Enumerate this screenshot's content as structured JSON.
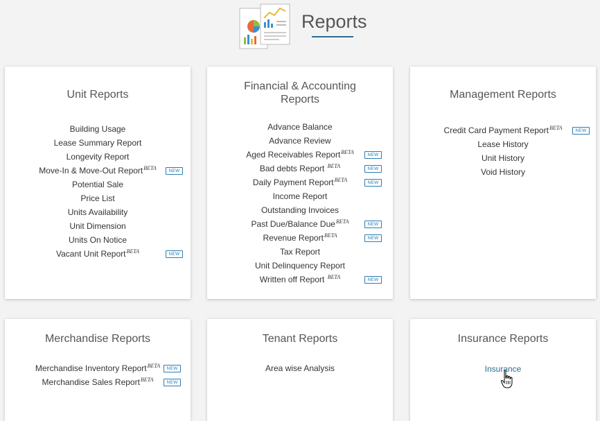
{
  "page": {
    "title": "Reports"
  },
  "badge_new": "NEW",
  "beta": "BETA",
  "cards": {
    "unit": {
      "title": "Unit Reports",
      "items": [
        {
          "label": "Building Usage"
        },
        {
          "label": "Lease Summary Report"
        },
        {
          "label": "Longevity Report"
        },
        {
          "label": "Move-In & Move-Out Report"
        },
        {
          "label": "Potential Sale"
        },
        {
          "label": "Price List"
        },
        {
          "label": "Units Availability"
        },
        {
          "label": "Unit Dimension"
        },
        {
          "label": "Units On Notice"
        },
        {
          "label": "Vacant Unit Report"
        }
      ]
    },
    "financial": {
      "title_line1": "Financial & Accounting",
      "title_line2": "Reports",
      "items": [
        {
          "label": "Advance Balance"
        },
        {
          "label": "Advance Review"
        },
        {
          "label": "Aged Receivables Report"
        },
        {
          "label": "Bad debts Report"
        },
        {
          "label": "Daily Payment Report"
        },
        {
          "label": "Income Report"
        },
        {
          "label": "Outstanding Invoices"
        },
        {
          "label": "Past Due/Balance Due"
        },
        {
          "label": "Revenue Report"
        },
        {
          "label": "Tax Report"
        },
        {
          "label": "Unit Delinquency Report"
        },
        {
          "label": "Written off Report"
        }
      ]
    },
    "management": {
      "title": "Management Reports",
      "items": [
        {
          "label": "Credit Card Payment Report"
        },
        {
          "label": "Lease History"
        },
        {
          "label": "Unit History"
        },
        {
          "label": "Void History"
        }
      ]
    },
    "merchandise": {
      "title": "Merchandise Reports",
      "items": [
        {
          "label": "Merchandise Inventory Report"
        },
        {
          "label": "Merchandise Sales Report"
        }
      ]
    },
    "tenant": {
      "title": "Tenant Reports",
      "items": [
        {
          "label": "Area wise Analysis"
        }
      ]
    },
    "insurance": {
      "title": "Insurance Reports",
      "items": [
        {
          "label": "Insurance"
        }
      ]
    }
  }
}
